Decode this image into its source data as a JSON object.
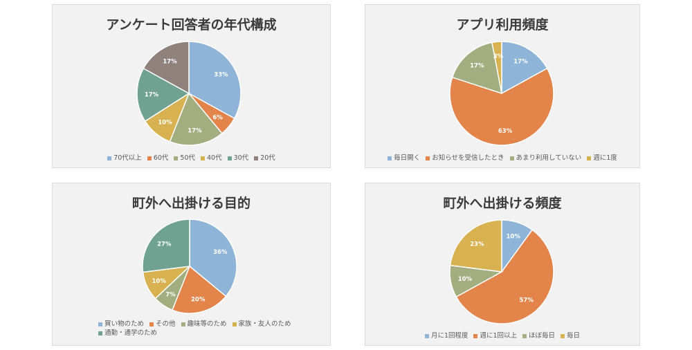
{
  "chart_data": [
    {
      "type": "pie",
      "title": "アンケート回答者の年代構成",
      "categories": [
        "70代以上",
        "60代",
        "50代",
        "40代",
        "30代",
        "20代"
      ],
      "values": [
        33,
        6,
        17,
        10,
        17,
        17
      ],
      "labels": [
        "33%",
        "6%",
        "17%",
        "10%",
        "17%",
        "17%"
      ],
      "colors": [
        "#8eb4d7",
        "#e3844a",
        "#a3ae80",
        "#d8b150",
        "#6fa291",
        "#8f817c"
      ],
      "legend": "bottom"
    },
    {
      "type": "pie",
      "title": "アプリ利用頻度",
      "categories": [
        "毎日開く",
        "お知らせを受信したとき",
        "あまり利用していない",
        "週に1度"
      ],
      "values": [
        17,
        63,
        17,
        3
      ],
      "labels": [
        "17%",
        "63%",
        "17%",
        "3%"
      ],
      "colors": [
        "#8eb4d7",
        "#e3844a",
        "#a3ae80",
        "#d8b150"
      ],
      "legend": "bottom"
    },
    {
      "type": "pie",
      "title": "町外へ出掛ける目的",
      "categories": [
        "買い物のため",
        "その他",
        "趣味等のため",
        "家族・友人のため",
        "通勤・通学のため"
      ],
      "values": [
        36,
        20,
        7,
        10,
        27
      ],
      "labels": [
        "36%",
        "20%",
        "7%",
        "10%",
        "27%"
      ],
      "colors": [
        "#8eb4d7",
        "#e3844a",
        "#a3ae80",
        "#d8b150",
        "#6fa291"
      ],
      "legend": "bottom"
    },
    {
      "type": "pie",
      "title": "町外へ出掛ける頻度",
      "categories": [
        "月に1回程度",
        "週に1回以上",
        "ほぼ毎日",
        "毎日"
      ],
      "values": [
        10,
        57,
        10,
        23
      ],
      "labels": [
        "10%",
        "57%",
        "10%",
        "23%"
      ],
      "colors": [
        "#8eb4d7",
        "#e3844a",
        "#a3ae80",
        "#d8b150"
      ],
      "legend": "bottom"
    }
  ]
}
